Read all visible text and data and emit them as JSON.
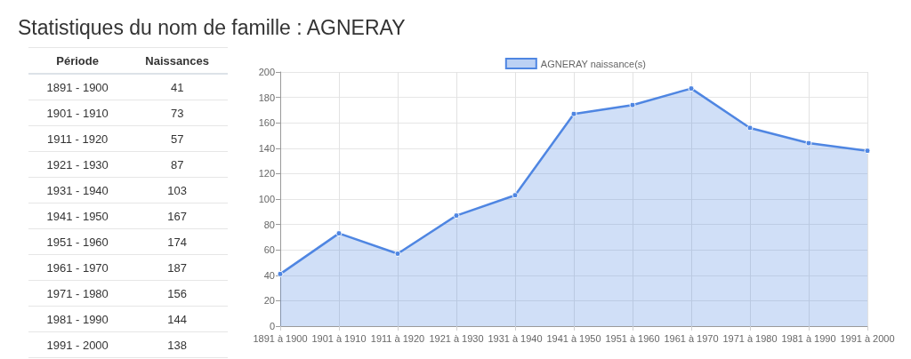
{
  "chart_data": [
    {
      "type": "other",
      "title": "Statistiques du nom de famille : AGNERAY",
      "annotations": [
        "Période",
        "Naissances"
      ],
      "categories": [
        "1891 - 1900",
        "1901 - 1910",
        "1911 - 1920",
        "1921 - 1930",
        "1931 - 1940",
        "1941 - 1950",
        "1951 - 1960",
        "1961 - 1970",
        "1971 - 1980",
        "1981 - 1990",
        "1991 - 2000"
      ],
      "values": [
        41,
        73,
        57,
        87,
        103,
        167,
        174,
        187,
        156,
        144,
        138
      ],
      "data_labels": true
    },
    {
      "type": "area",
      "categories": [
        "1891 à 1900",
        "1901 à 1910",
        "1911 à 1920",
        "1921 à 1930",
        "1931 à 1940",
        "1941 à 1950",
        "1951 à 1960",
        "1961 à 1970",
        "1971 à 1980",
        "1981 à 1990",
        "1991 à 2000"
      ],
      "series": [
        {
          "name": "AGNERAY naissance(s)",
          "color": "#4f86e2",
          "values": [
            41,
            73,
            57,
            87,
            103,
            167,
            174,
            187,
            156,
            144,
            138
          ]
        }
      ],
      "ylim": [
        0,
        200
      ],
      "yticks": [
        0,
        20,
        40,
        60,
        80,
        100,
        120,
        140,
        160,
        180,
        200
      ],
      "grid": true,
      "legend": "top",
      "marker": "circle"
    }
  ]
}
